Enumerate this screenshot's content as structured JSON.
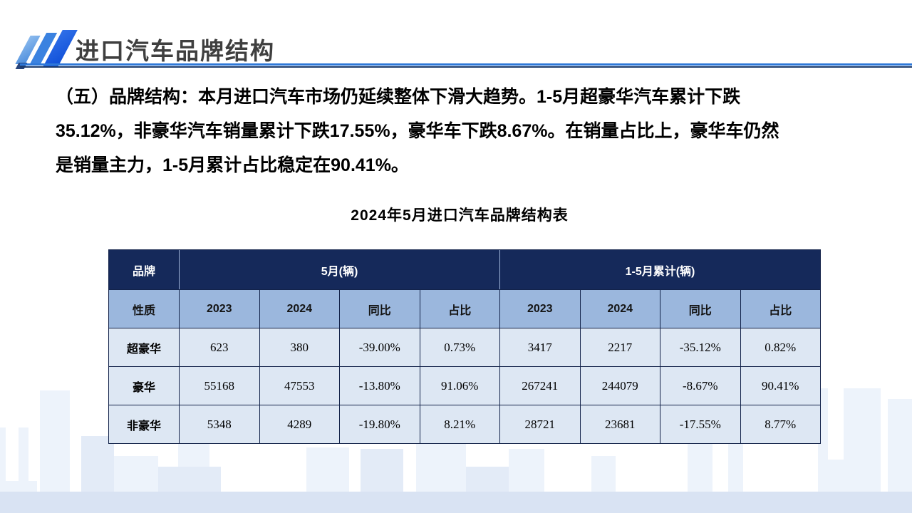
{
  "header": {
    "title": "进口汽车品牌结构"
  },
  "paragraph": {
    "lines": [
      "（五）品牌结构：本月进口汽车市场仍延续整体下滑大趋势。1-5月超豪华汽车累计下跌",
      "35.12%，非豪华汽车销量累计下跌17.55%，豪华车下跌8.67%。在销量占比上，豪华车仍然",
      "是销量主力，1-5月累计占比稳定在90.41%。"
    ]
  },
  "table": {
    "title": "2024年5月进口汽车品牌结构表",
    "corner_header": "品牌",
    "corner_subheader": "性质",
    "groups": [
      {
        "label": "5月(辆)"
      },
      {
        "label": "1-5月累计(辆)"
      }
    ],
    "sub_headers": [
      "2023",
      "2024",
      "同比",
      "占比",
      "2023",
      "2024",
      "同比",
      "占比"
    ],
    "rows": [
      {
        "label": "超豪华",
        "values": [
          "623",
          "380",
          "-39.00%",
          "0.73%",
          "3417",
          "2217",
          "-35.12%",
          "0.82%"
        ]
      },
      {
        "label": "豪华",
        "values": [
          "55168",
          "47553",
          "-13.80%",
          "91.06%",
          "267241",
          "244079",
          "-8.67%",
          "90.41%"
        ]
      },
      {
        "label": "非豪华",
        "values": [
          "5348",
          "4289",
          "-19.80%",
          "8.21%",
          "28721",
          "23681",
          "-17.55%",
          "8.77%"
        ]
      }
    ]
  },
  "colors": {
    "header_row_dark": "#15295A",
    "header_row_light": "#9BB7DD",
    "data_row_bg": "#DDE7F3",
    "accent_blue": "#2E78D8",
    "dark_navy": "#1B3A6B",
    "title_gray": "#3F3F3F",
    "skyline_band": "#D9E3F3"
  }
}
